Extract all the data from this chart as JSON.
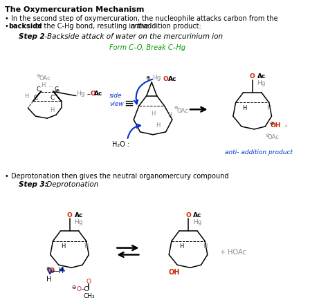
{
  "title": "The Oxymercuration Mechanism",
  "bg_color": "#ffffff",
  "tc": "#000000",
  "gc": "#888888",
  "rc": "#cc2200",
  "bc": "#0033cc",
  "grn": "#009900",
  "line1": "• In the second step of oxymercuration, the nucleophile attacks carbon from the",
  "line2a": "backside",
  "line2b": " of the C-Hg bond, resutling in the ",
  "line2c": "anti",
  "line2d": " addition product:",
  "step2a": "Step 2",
  "step2b": " - ",
  "step2c": "Backside attack of water on the mercurinium ion",
  "form_co": "Form C–O, Break C–Hg",
  "anti_prod": "anti- addition product",
  "deprot_line": "• Deprotonation then gives the neutral organomercury compound",
  "step3a": "Step 3:",
  "step3b": " Deprotonation",
  "hoac": "+ HOAc"
}
